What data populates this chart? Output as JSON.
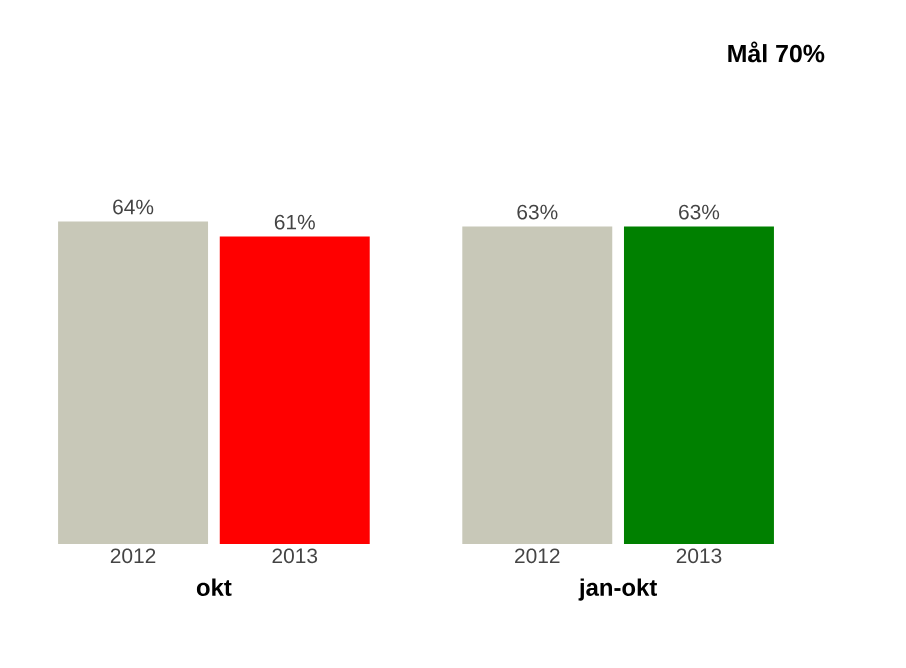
{
  "chart_data": {
    "type": "bar",
    "title": "Mål 70%",
    "categories": [
      "okt",
      "jan-okt"
    ],
    "series": [
      {
        "name": "2012",
        "color": "#c8c8b8",
        "values": [
          64,
          63
        ],
        "value_labels": [
          "64%",
          "63%"
        ]
      },
      {
        "name": "2013",
        "colors": [
          "#ff0000",
          "#008000"
        ],
        "values": [
          61,
          63
        ],
        "value_labels": [
          "61%",
          "63%"
        ]
      }
    ]
  }
}
